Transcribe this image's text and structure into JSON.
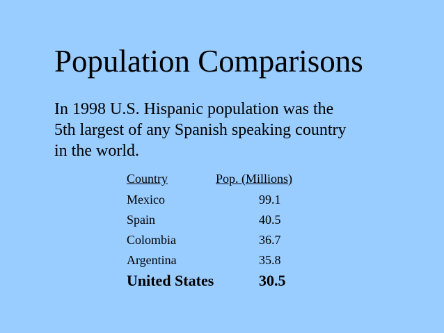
{
  "slide": {
    "title": "Population Comparisons",
    "body_lines": [
      "In 1998 U.S. Hispanic population was the",
      "5th largest of any Spanish speaking country",
      "in the world."
    ],
    "table": {
      "headers": [
        "Country",
        "Pop. (Millions)"
      ],
      "rows": [
        [
          "Mexico",
          99.1
        ],
        [
          "Spain",
          40.5
        ],
        [
          "Colombia",
          36.7
        ],
        [
          "Argentina",
          35.8
        ],
        [
          "United States",
          30.5
        ]
      ]
    }
  }
}
